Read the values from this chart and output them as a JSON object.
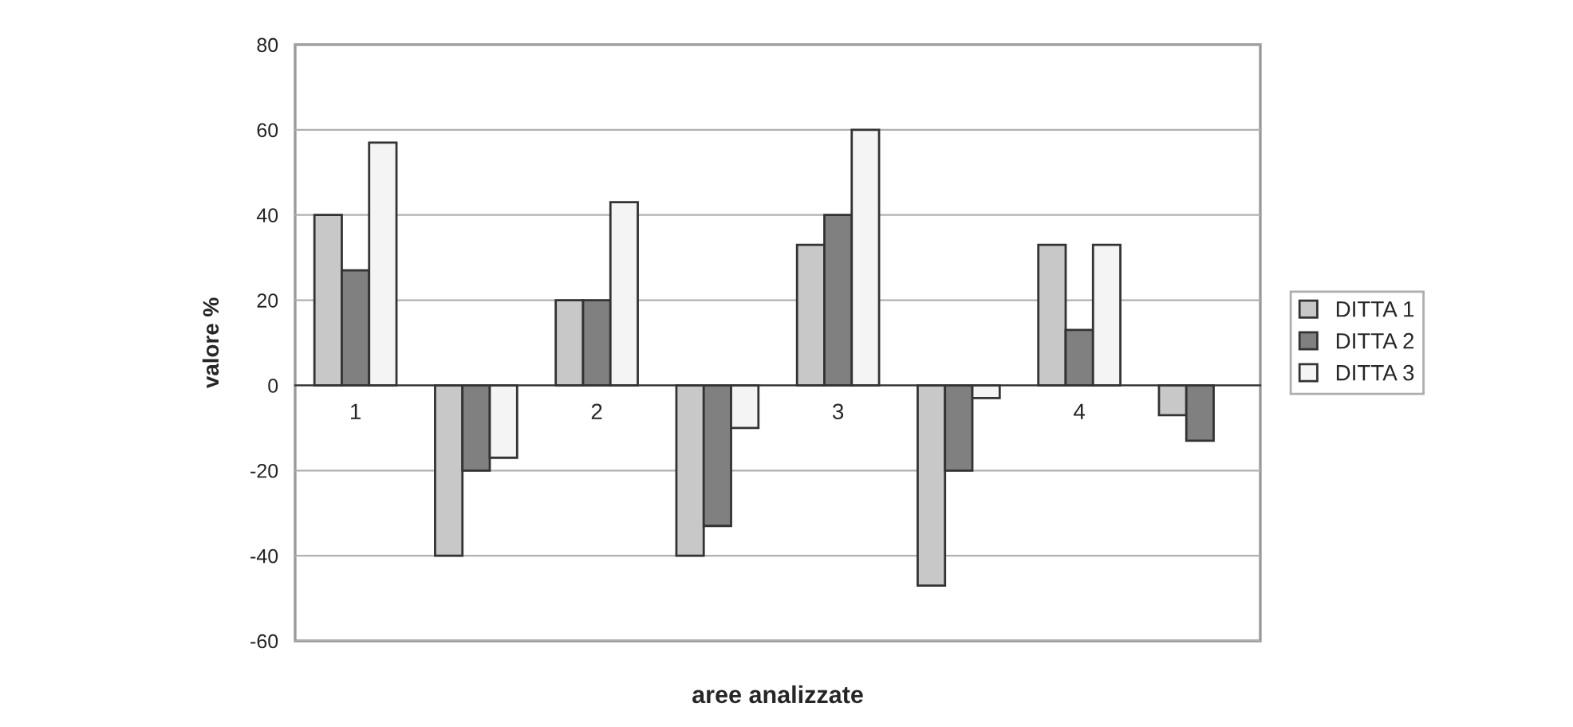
{
  "chart_data": {
    "type": "bar",
    "xlabel": "aree analizzate",
    "ylabel": "valore %",
    "categories": [
      "1",
      null,
      "2",
      null,
      "3",
      null,
      "4",
      null
    ],
    "series": [
      {
        "name": "DITTA 1",
        "color": "#c8c8c8",
        "values": [
          40,
          -40,
          20,
          -40,
          33,
          -47,
          33,
          -7
        ]
      },
      {
        "name": "DITTA 2",
        "color": "#808080",
        "values": [
          27,
          -20,
          20,
          -33,
          40,
          -20,
          13,
          -13
        ]
      },
      {
        "name": "DITTA 3",
        "color": "#f4f4f4",
        "values": [
          57,
          -17,
          43,
          -10,
          60,
          -3,
          33,
          null
        ]
      }
    ],
    "ylim": [
      -60,
      80
    ],
    "yticks": [
      -60,
      -40,
      -20,
      0,
      20,
      40,
      60,
      80
    ],
    "grid": "y",
    "legend": "right"
  }
}
